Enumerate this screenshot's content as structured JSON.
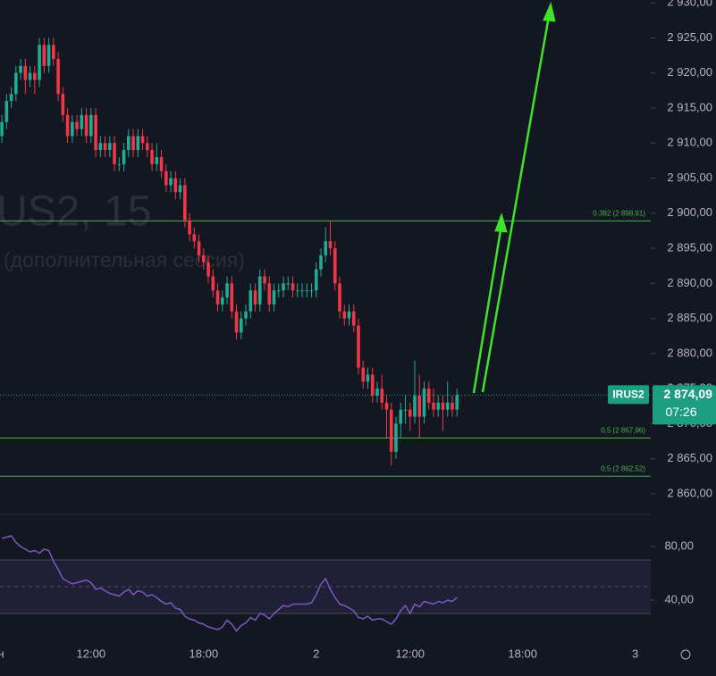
{
  "chart_data": [
    {
      "type": "candlestick",
      "watermark": "US2, 15",
      "watermark_subtitle": "(дополнительная сессия)",
      "up_color": "#22ab94",
      "down_color": "#f23645",
      "xlim": [
        -0.4,
        138.3
      ],
      "xticks": [
        {
          "value": 0.5,
          "label": "он"
        },
        {
          "value": 19,
          "label": "12:00"
        },
        {
          "value": 43,
          "label": "18:00"
        },
        {
          "value": 67,
          "label": "2"
        },
        {
          "value": 87,
          "label": "12:00"
        },
        {
          "value": 111,
          "label": "18:00"
        },
        {
          "value": 135,
          "label": "3"
        }
      ],
      "ylim": [
        2857.2,
        2930.4
      ],
      "yticks": [
        {
          "value": 2860,
          "label": "2 860,00"
        },
        {
          "value": 2865,
          "label": "2 865,00"
        },
        {
          "value": 2870,
          "label": "2 870,00"
        },
        {
          "value": 2875,
          "label": "2 875,00"
        },
        {
          "value": 2880,
          "label": "2 880,00"
        },
        {
          "value": 2885,
          "label": "2 885,00"
        },
        {
          "value": 2890,
          "label": "2 890,00"
        },
        {
          "value": 2895,
          "label": "2 895,00"
        },
        {
          "value": 2900,
          "label": "2 900,00"
        },
        {
          "value": 2905,
          "label": "2 905,00"
        },
        {
          "value": 2910,
          "label": "2 910,00"
        },
        {
          "value": 2915,
          "label": "2 915,00"
        },
        {
          "value": 2920,
          "label": "2 920,00"
        },
        {
          "value": 2925,
          "label": "2 925,00"
        },
        {
          "value": 2930,
          "label": "2 930,00"
        }
      ],
      "levels": [
        {
          "value": 2898.91,
          "label": "0,382 (2 898,91)"
        },
        {
          "value": 2867.96,
          "label": "0,5 (2 867,96)"
        },
        {
          "value": 2862.52,
          "label": "0,5 (2 862,52)"
        }
      ],
      "level_color": "#4caf50",
      "last_price": {
        "value": 2874.09,
        "label": "2 874,09",
        "symbol": "IRUS2",
        "countdown": "07:26",
        "color": "#1e9e80"
      },
      "candles": [
        [
          2911,
          2914,
          2910,
          2913
        ],
        [
          2913,
          2917,
          2912,
          2916
        ],
        [
          2916,
          2918,
          2915,
          2917
        ],
        [
          2917,
          2921,
          2916,
          2920
        ],
        [
          2920,
          2922,
          2919,
          2921
        ],
        [
          2921,
          2922,
          2917,
          2919
        ],
        [
          2919,
          2921,
          2918,
          2920
        ],
        [
          2920,
          2921,
          2917,
          2919
        ],
        [
          2919,
          2925,
          2918,
          2924
        ],
        [
          2924,
          2925,
          2920,
          2921
        ],
        [
          2921,
          2925,
          2920,
          2924
        ],
        [
          2924,
          2925,
          2921,
          2922
        ],
        [
          2922,
          2923,
          2916,
          2917
        ],
        [
          2917,
          2918,
          2913,
          2914
        ],
        [
          2914,
          2915,
          2910,
          2911
        ],
        [
          2911,
          2914,
          2910,
          2913
        ],
        [
          2913,
          2914,
          2911,
          2912
        ],
        [
          2912,
          2915,
          2911,
          2914
        ],
        [
          2914,
          2915,
          2910,
          2911
        ],
        [
          2911,
          2915,
          2910,
          2914
        ],
        [
          2914,
          2915,
          2908,
          2909
        ],
        [
          2909,
          2911,
          2908,
          2910
        ],
        [
          2910,
          2911,
          2908,
          2909
        ],
        [
          2909,
          2911,
          2908,
          2910
        ],
        [
          2910,
          2911,
          2906,
          2907
        ],
        [
          2907,
          2908,
          2906,
          2907
        ],
        [
          2907,
          2910,
          2906,
          2909
        ],
        [
          2909,
          2912,
          2908,
          2911
        ],
        [
          2911,
          2912,
          2908,
          2909
        ],
        [
          2909,
          2912,
          2908,
          2911
        ],
        [
          2911,
          2912,
          2909,
          2910
        ],
        [
          2910,
          2911,
          2908,
          2909
        ],
        [
          2909,
          2910,
          2906,
          2907
        ],
        [
          2907,
          2910,
          2906,
          2908
        ],
        [
          2908,
          2909,
          2905,
          2906
        ],
        [
          2906,
          2907,
          2903,
          2904
        ],
        [
          2904,
          2906,
          2903,
          2905
        ],
        [
          2905,
          2906,
          2902,
          2903
        ],
        [
          2903,
          2905,
          2902,
          2904
        ],
        [
          2904,
          2905,
          2898,
          2899
        ],
        [
          2899,
          2900,
          2896,
          2897
        ],
        [
          2897,
          2898,
          2895,
          2896
        ],
        [
          2896,
          2897,
          2893,
          2894
        ],
        [
          2894,
          2895,
          2892,
          2893
        ],
        [
          2893,
          2894,
          2890,
          2891
        ],
        [
          2891,
          2892,
          2888,
          2889
        ],
        [
          2889,
          2890,
          2886,
          2887
        ],
        [
          2887,
          2889,
          2886,
          2888
        ],
        [
          2888,
          2891,
          2887,
          2890
        ],
        [
          2890,
          2891,
          2885,
          2886
        ],
        [
          2886,
          2887,
          2882,
          2883
        ],
        [
          2883,
          2886,
          2882,
          2885
        ],
        [
          2885,
          2887,
          2884,
          2886
        ],
        [
          2886,
          2890,
          2885,
          2889
        ],
        [
          2889,
          2890,
          2886,
          2887
        ],
        [
          2887,
          2892,
          2886,
          2891
        ],
        [
          2891,
          2892,
          2889,
          2890
        ],
        [
          2890,
          2891,
          2886,
          2887
        ],
        [
          2887,
          2890,
          2886,
          2889
        ],
        [
          2889,
          2890,
          2888,
          2889
        ],
        [
          2889,
          2891,
          2888,
          2890
        ],
        [
          2890,
          2891,
          2889,
          2890
        ],
        [
          2890,
          2891,
          2888,
          2889
        ],
        [
          2889,
          2890,
          2888,
          2889
        ],
        [
          2889,
          2890,
          2888,
          2889
        ],
        [
          2889,
          2890,
          2888,
          2889
        ],
        [
          2889,
          2890,
          2888,
          2889
        ],
        [
          2889,
          2893,
          2888,
          2892
        ],
        [
          2892,
          2895,
          2891,
          2894
        ],
        [
          2894,
          2898,
          2893,
          2896
        ],
        [
          2896,
          2899,
          2894,
          2895
        ],
        [
          2895,
          2896,
          2889,
          2890
        ],
        [
          2890,
          2891,
          2885,
          2886
        ],
        [
          2886,
          2887,
          2884,
          2885
        ],
        [
          2885,
          2887,
          2884,
          2886
        ],
        [
          2886,
          2887,
          2883,
          2884
        ],
        [
          2884,
          2885,
          2877,
          2878
        ],
        [
          2878,
          2879,
          2875,
          2876
        ],
        [
          2876,
          2878,
          2875,
          2877
        ],
        [
          2877,
          2878,
          2873,
          2874
        ],
        [
          2874,
          2876,
          2873,
          2875
        ],
        [
          2875,
          2877,
          2872,
          2873
        ],
        [
          2873,
          2874,
          2868,
          2872
        ],
        [
          2872,
          2873,
          2864,
          2866
        ],
        [
          2866,
          2871,
          2865,
          2870
        ],
        [
          2870,
          2873,
          2868,
          2872
        ],
        [
          2872,
          2874,
          2870,
          2872
        ],
        [
          2872,
          2873,
          2869,
          2871
        ],
        [
          2871,
          2879,
          2870,
          2874
        ],
        [
          2874,
          2877,
          2868,
          2871
        ],
        [
          2871,
          2876,
          2870,
          2875
        ],
        [
          2875,
          2876,
          2872,
          2873
        ],
        [
          2873,
          2875,
          2871,
          2872
        ],
        [
          2872,
          2874,
          2871,
          2873
        ],
        [
          2873,
          2874,
          2869,
          2872
        ],
        [
          2872,
          2876,
          2871,
          2873
        ],
        [
          2873,
          2874,
          2871,
          2872
        ],
        [
          2872,
          2875,
          2871,
          2874.09
        ]
      ]
    },
    {
      "type": "line",
      "color": "#7e57c2",
      "ylim": [
        8,
        103
      ],
      "yticks": [
        {
          "value": 80,
          "label": "80,00"
        },
        {
          "value": 40,
          "label": "40,00"
        }
      ],
      "band": [
        30,
        70
      ],
      "values": [
        86,
        87,
        88,
        83,
        80,
        78,
        76,
        77,
        75,
        78,
        77,
        69,
        63,
        56,
        54,
        52,
        53,
        54,
        55,
        53,
        48,
        49,
        47,
        45,
        44,
        43,
        46,
        48,
        44,
        47,
        46,
        43,
        44,
        42,
        39,
        37,
        38,
        34,
        33,
        28,
        26,
        25,
        23,
        22,
        20,
        19,
        18,
        20,
        25,
        22,
        17,
        21,
        23,
        27,
        25,
        30,
        29,
        26,
        30,
        33,
        36,
        35,
        37,
        37,
        37,
        37,
        38,
        44,
        52,
        56,
        48,
        42,
        37,
        36,
        34,
        32,
        27,
        26,
        28,
        25,
        26,
        26,
        24,
        22,
        26,
        32,
        36,
        30,
        37,
        35,
        39,
        38,
        37,
        39,
        38,
        40,
        39,
        42
      ]
    }
  ]
}
